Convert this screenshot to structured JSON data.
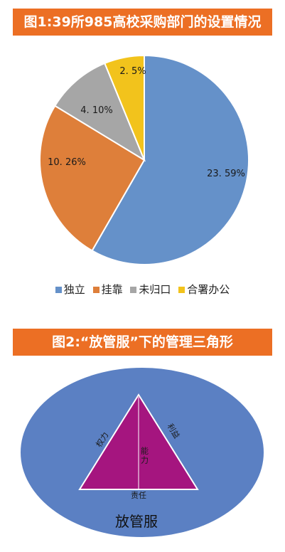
{
  "figure1": {
    "title": "图1:39所985高校采购部门的设置情况"
  },
  "figure2": {
    "title": "图2:“放管服”下的管理三角形",
    "ellipse_label": "放管服",
    "left_side_label": "权力",
    "right_side_label": "利益",
    "bottom_label": "责任",
    "center_label": "能力",
    "colors": {
      "ellipse": "#5b80c3",
      "triangle": "#a5157f"
    }
  },
  "chart_data": {
    "type": "pie",
    "categories": [
      "独立",
      "挂靠",
      "未归口",
      "合署办公"
    ],
    "values": [
      23.59,
      10.26,
      4.1,
      2.5
    ],
    "data_labels": [
      "23. 59%",
      "10. 26%",
      "4. 10%",
      "2. 5%"
    ],
    "colors": [
      "#6591c9",
      "#de7f3a",
      "#a6a6a6",
      "#f2c31c"
    ],
    "legend": "bottom"
  }
}
